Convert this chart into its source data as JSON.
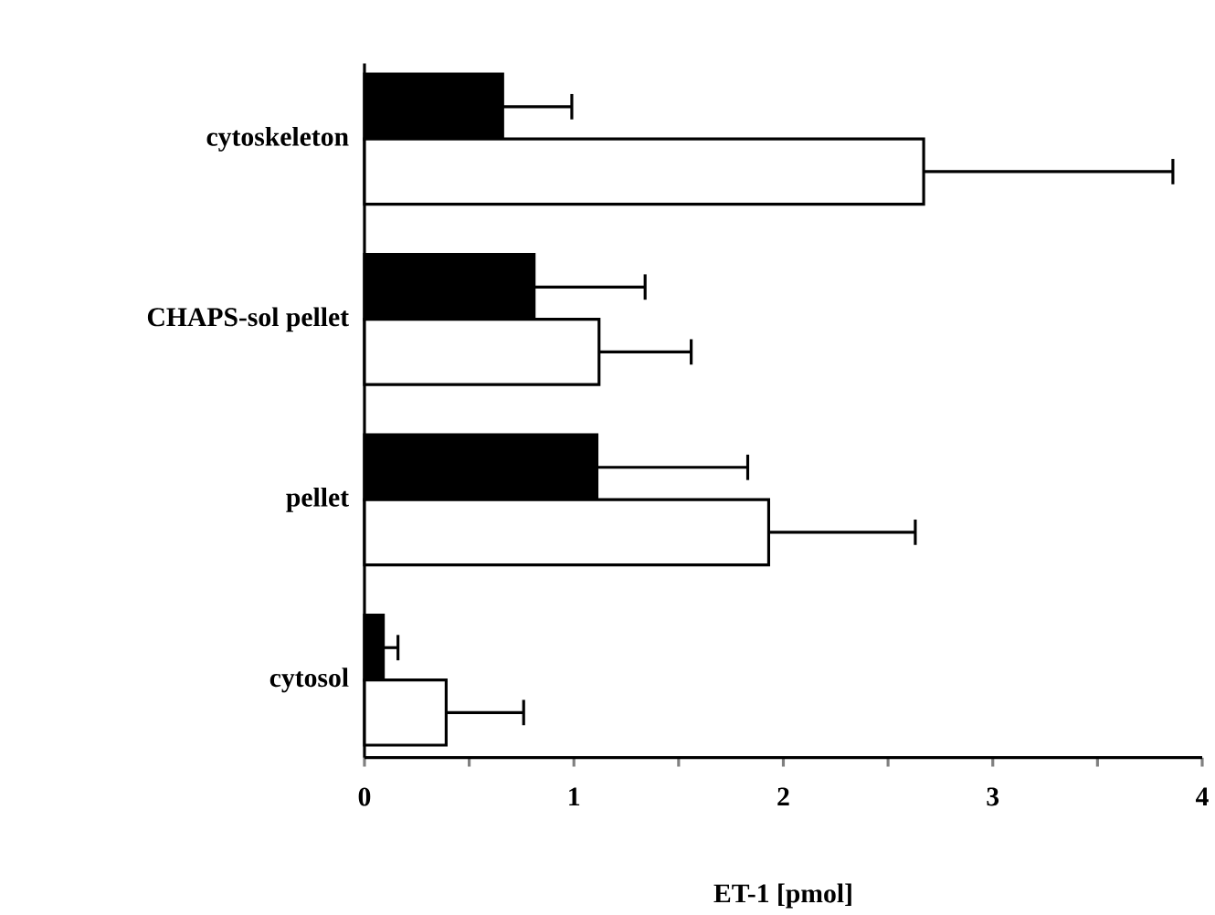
{
  "chart_data": {
    "type": "bar",
    "orientation": "horizontal",
    "xlabel": "ET-1 [pmol]",
    "categories": [
      "cytoskeleton",
      "CHAPS-sol pellet",
      "pellet",
      "cytosol"
    ],
    "series": [
      {
        "color": "#000000",
        "values": [
          0.66,
          0.81,
          1.11,
          0.09
        ],
        "errors": [
          [
            0.66,
            0.99
          ],
          [
            0.81,
            1.34
          ],
          [
            1.11,
            1.83
          ],
          [
            0.09,
            0.16
          ]
        ]
      },
      {
        "color": "#ffffff",
        "values": [
          2.67,
          1.12,
          1.93,
          0.39
        ],
        "errors": [
          [
            2.67,
            3.86
          ],
          [
            1.12,
            1.56
          ],
          [
            1.93,
            2.63
          ],
          [
            0.39,
            0.76
          ]
        ]
      }
    ],
    "xlim": [
      0,
      4
    ],
    "xticks": [
      0,
      {
        "value": 0.5,
        "label": null
      },
      1,
      {
        "value": 1.5,
        "label": null
      },
      2,
      {
        "value": 2.5,
        "label": null
      },
      3,
      {
        "value": 3.5,
        "label": null
      },
      4
    ],
    "grid": false
  }
}
